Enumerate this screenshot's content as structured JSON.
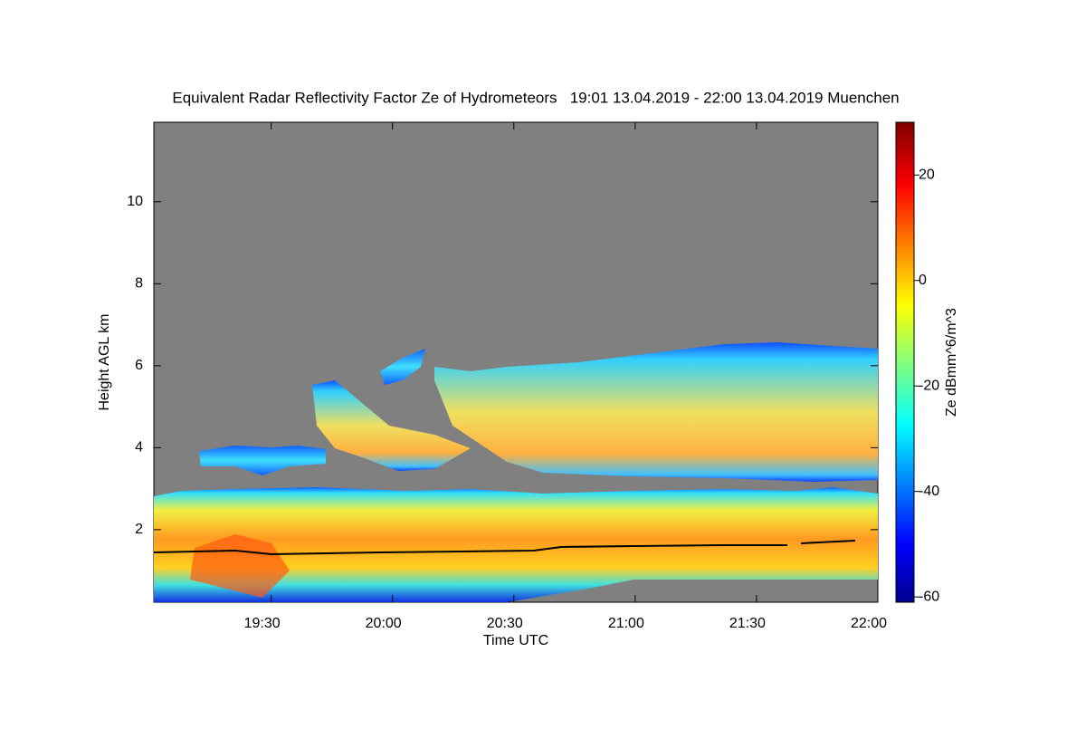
{
  "chart_data": {
    "type": "heatmap",
    "title": "Equivalent Radar Reflectivity Factor Ze of Hydrometeors   19:01 13.04.2019 - 22:00 13.04.2019 Muenchen",
    "x_label": "Time UTC",
    "y_label": "Height AGL km",
    "colorbar_label": "Ze dBmm^6/m^3",
    "xlim": [
      "19:01",
      "22:00"
    ],
    "xticks": [
      "19:30",
      "20:00",
      "20:30",
      "21:00",
      "21:30",
      "22:00"
    ],
    "ylim": [
      0.23,
      11.94
    ],
    "yticks": [
      2,
      4,
      6,
      8,
      10
    ],
    "clim": [
      -61,
      30
    ],
    "cticks": [
      -60,
      -40,
      -20,
      0,
      20
    ],
    "background": "#808080"
  }
}
